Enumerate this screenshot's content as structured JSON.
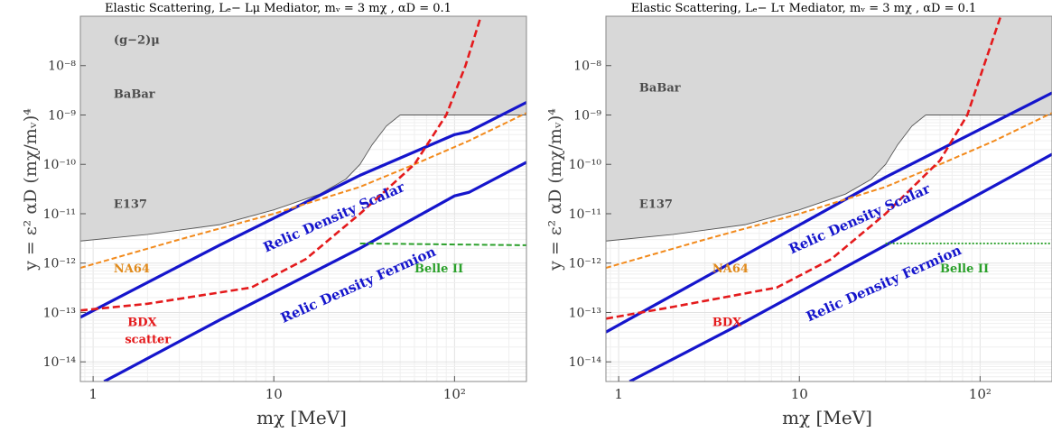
{
  "chart_data": [
    {
      "type": "line",
      "title": "Elastic Scattering, Lₑ− Lμ Mediator,  mᵥ = 3 mχ , αD = 0.1",
      "xlabel": "mχ [MeV]",
      "ylabel": "y = ε² αD (mχ/mᵥ)⁴",
      "xscale": "log",
      "yscale": "log",
      "xlim": [
        0.85,
        250
      ],
      "ylim": [
        4e-15,
        1e-07
      ],
      "x_ticks": [
        {
          "v": 1,
          "label": "1"
        },
        {
          "v": 10,
          "label": "10"
        },
        {
          "v": 100,
          "label": "10²"
        }
      ],
      "y_ticks": [
        {
          "v": 1e-14,
          "label": "10⁻¹⁴"
        },
        {
          "v": 1e-13,
          "label": "10⁻¹³"
        },
        {
          "v": 1e-12,
          "label": "10⁻¹²"
        },
        {
          "v": 1e-11,
          "label": "10⁻¹¹"
        },
        {
          "v": 1e-10,
          "label": "10⁻¹⁰"
        },
        {
          "v": 1e-09,
          "label": "10⁻⁹"
        },
        {
          "v": 1e-08,
          "label": "10⁻⁸"
        }
      ],
      "grid": true,
      "excluded_regions": [
        {
          "name": "(g−2)μ",
          "color": "#d8d8d8",
          "boundary": [
            [
              0.85,
              7e-09
            ],
            [
              2,
              7.5e-09
            ],
            [
              5,
              8.5e-09
            ],
            [
              10,
              1.05e-08
            ],
            [
              20,
              1.5e-08
            ],
            [
              35,
              3e-08
            ],
            [
              50,
              7e-08
            ],
            [
              60,
              1e-07
            ]
          ]
        },
        {
          "name": "BaBar",
          "color": "#d8d8d8",
          "boundary": [
            [
              0.85,
              1e-09
            ],
            [
              250,
              1e-09
            ]
          ]
        },
        {
          "name": "E137",
          "color": "#d8d8d8",
          "boundary": [
            [
              0.85,
              2.8e-12
            ],
            [
              2,
              3.8e-12
            ],
            [
              5,
              6e-12
            ],
            [
              10,
              1.2e-11
            ],
            [
              18,
              2.5e-11
            ],
            [
              25,
              5e-11
            ],
            [
              30,
              1e-10
            ],
            [
              35,
              2.5e-10
            ],
            [
              42,
              6e-10
            ],
            [
              50,
              1e-09
            ]
          ]
        }
      ],
      "series": [
        {
          "name": "Relic Density Scalar",
          "color": "#1515cc",
          "style": "solid",
          "points": [
            [
              0.85,
              8e-14
            ],
            [
              5,
              2.3e-12
            ],
            [
              30,
              6e-11
            ],
            [
              100,
              4e-10
            ],
            [
              120,
              4.6e-10
            ],
            [
              250,
              1.8e-09
            ]
          ]
        },
        {
          "name": "Relic Density Fermion",
          "color": "#1515cc",
          "style": "solid",
          "points": [
            [
              1.15,
              4e-15
            ],
            [
              5,
              7e-14
            ],
            [
              30,
              2e-12
            ],
            [
              100,
              2.3e-11
            ],
            [
              120,
              2.7e-11
            ],
            [
              250,
              1.1e-10
            ]
          ]
        },
        {
          "name": "NA64",
          "color": "#f28a1c",
          "style": "dashed",
          "points": [
            [
              0.85,
              8e-13
            ],
            [
              3,
              3e-12
            ],
            [
              10,
              1e-11
            ],
            [
              30,
              3.5e-11
            ],
            [
              60,
              1e-10
            ],
            [
              120,
              3e-10
            ],
            [
              250,
              1.1e-09
            ]
          ]
        },
        {
          "name": "BDX scatter",
          "color": "#e41a1c",
          "style": "dashed",
          "points": [
            [
              0.85,
              1.1e-13
            ],
            [
              2,
              1.5e-13
            ],
            [
              7.5,
              3.2e-13
            ],
            [
              15,
              1.2e-12
            ],
            [
              30,
              1e-11
            ],
            [
              60,
              1e-10
            ],
            [
              90,
              1e-09
            ],
            [
              115,
              1e-08
            ],
            [
              140,
              1e-07
            ]
          ]
        },
        {
          "name": "Belle II",
          "color": "#2ca02c",
          "style": "dashed",
          "points": [
            [
              30,
              2.5e-12
            ],
            [
              250,
              2.3e-12
            ]
          ]
        }
      ],
      "annotations": [
        {
          "text": "(g−2)μ",
          "x": 1.3,
          "y": 2.8e-08,
          "color": "#4d4d4d"
        },
        {
          "text": "BaBar",
          "x": 1.3,
          "y": 2.2e-09,
          "color": "#4d4d4d"
        },
        {
          "text": "E137",
          "x": 1.3,
          "y": 1.3e-11,
          "color": "#4d4d4d"
        },
        {
          "text": "NA64",
          "x": 1.3,
          "y": 6.5e-13,
          "color": "#e08a1c"
        },
        {
          "text": "BDX",
          "x": 1.55,
          "y": 5.3e-14,
          "color": "#e41a1c"
        },
        {
          "text": "scatter",
          "x": 1.5,
          "y": 2.4e-14,
          "color": "#e41a1c"
        },
        {
          "text": "Belle II",
          "x": 60,
          "y": 6.5e-13,
          "color": "#2aa02a"
        },
        {
          "text": "Relic Density Scalar",
          "x": 22,
          "y": 7e-12,
          "color": "#1515cc",
          "rotate": -24
        },
        {
          "text": "Relic Density Fermion",
          "x": 30,
          "y": 3e-13,
          "color": "#1515cc",
          "rotate": -24
        }
      ]
    },
    {
      "type": "line",
      "title": "Elastic Scattering, Lₑ− Lτ Mediator,  mᵥ = 3 mχ , αD = 0.1",
      "xlabel": "mχ [MeV]",
      "ylabel": "y = ε² αD (mχ/mᵥ)⁴",
      "xscale": "log",
      "yscale": "log",
      "xlim": [
        0.85,
        250
      ],
      "ylim": [
        4e-15,
        1e-07
      ],
      "x_ticks": [
        {
          "v": 1,
          "label": "1"
        },
        {
          "v": 10,
          "label": "10"
        },
        {
          "v": 100,
          "label": "10²"
        }
      ],
      "y_ticks": [
        {
          "v": 1e-14,
          "label": "10⁻¹⁴"
        },
        {
          "v": 1e-13,
          "label": "10⁻¹³"
        },
        {
          "v": 1e-12,
          "label": "10⁻¹²"
        },
        {
          "v": 1e-11,
          "label": "10⁻¹¹"
        },
        {
          "v": 1e-10,
          "label": "10⁻¹⁰"
        },
        {
          "v": 1e-09,
          "label": "10⁻⁹"
        },
        {
          "v": 1e-08,
          "label": "10⁻⁸"
        }
      ],
      "grid": true,
      "excluded_regions": [
        {
          "name": "BaBar",
          "color": "#d8d8d8",
          "boundary": [
            [
              0.85,
              1e-09
            ],
            [
              250,
              1e-09
            ]
          ]
        },
        {
          "name": "E137",
          "color": "#d8d8d8",
          "boundary": [
            [
              0.85,
              2.8e-12
            ],
            [
              2,
              3.8e-12
            ],
            [
              5,
              6e-12
            ],
            [
              10,
              1.2e-11
            ],
            [
              18,
              2.5e-11
            ],
            [
              25,
              5e-11
            ],
            [
              30,
              1e-10
            ],
            [
              35,
              2.5e-10
            ],
            [
              42,
              6e-10
            ],
            [
              50,
              1e-09
            ]
          ]
        }
      ],
      "series": [
        {
          "name": "Relic Density Scalar",
          "color": "#1515cc",
          "style": "solid",
          "points": [
            [
              0.85,
              4e-14
            ],
            [
              5,
              1.45e-12
            ],
            [
              30,
              5.5e-11
            ],
            [
              250,
              2.8e-09
            ]
          ]
        },
        {
          "name": "Relic Density Fermion",
          "color": "#1515cc",
          "style": "solid",
          "points": [
            [
              1.15,
              4e-15
            ],
            [
              5,
              6.5e-14
            ],
            [
              30,
              2.3e-12
            ],
            [
              250,
              1.6e-10
            ]
          ]
        },
        {
          "name": "NA64",
          "color": "#f28a1c",
          "style": "dashed",
          "points": [
            [
              0.85,
              8e-13
            ],
            [
              3,
              3e-12
            ],
            [
              10,
              1e-11
            ],
            [
              30,
              3.5e-11
            ],
            [
              60,
              1e-10
            ],
            [
              120,
              3e-10
            ],
            [
              250,
              1.1e-09
            ]
          ]
        },
        {
          "name": "BDX",
          "color": "#e41a1c",
          "style": "dashed",
          "points": [
            [
              0.85,
              7.5e-14
            ],
            [
              2,
              1.3e-13
            ],
            [
              7.5,
              3.2e-13
            ],
            [
              15,
              1.2e-12
            ],
            [
              30,
              1e-11
            ],
            [
              60,
              1.2e-10
            ],
            [
              85,
              1e-09
            ],
            [
              105,
              1e-08
            ],
            [
              130,
              1e-07
            ]
          ]
        },
        {
          "name": "Belle II",
          "color": "#2ca02c",
          "style": "dotted",
          "points": [
            [
              30,
              2.5e-12
            ],
            [
              250,
              2.5e-12
            ]
          ]
        }
      ],
      "annotations": [
        {
          "text": "BaBar",
          "x": 1.3,
          "y": 3e-09,
          "color": "#4d4d4d"
        },
        {
          "text": "E137",
          "x": 1.3,
          "y": 1.3e-11,
          "color": "#4d4d4d"
        },
        {
          "text": "NA64",
          "x": 3.3,
          "y": 6.5e-13,
          "color": "#e08a1c"
        },
        {
          "text": "BDX",
          "x": 3.3,
          "y": 5.3e-14,
          "color": "#e41a1c"
        },
        {
          "text": "Belle II",
          "x": 60,
          "y": 6.5e-13,
          "color": "#2aa02a"
        },
        {
          "text": "Relic Density Scalar",
          "x": 22,
          "y": 6.5e-12,
          "color": "#1515cc",
          "rotate": -24
        },
        {
          "text": "Relic Density Fermion",
          "x": 30,
          "y": 3.2e-13,
          "color": "#1515cc",
          "rotate": -24
        }
      ]
    }
  ]
}
